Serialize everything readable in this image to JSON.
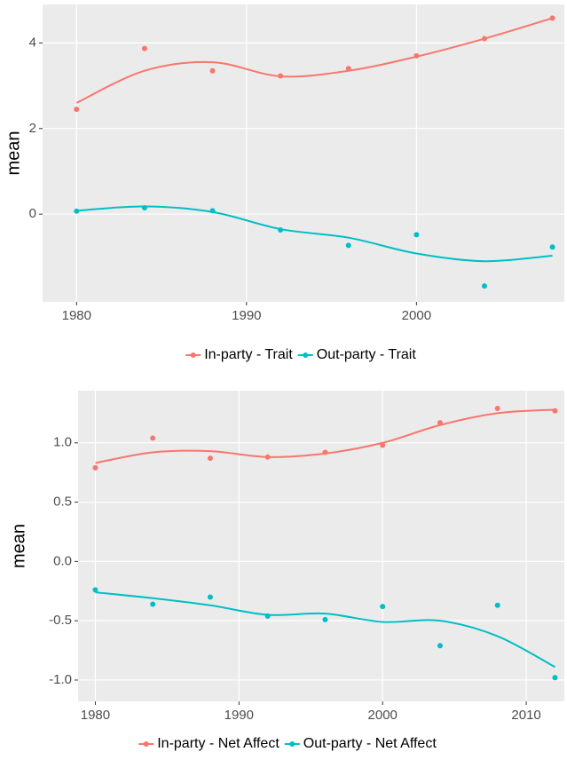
{
  "chart_data": [
    {
      "type": "scatter",
      "y_label": "mean",
      "x": [
        1980,
        1984,
        1988,
        1992,
        1996,
        2000,
        2004,
        2008
      ],
      "xlim": [
        1978,
        2008.7
      ],
      "xticks": [
        1980,
        1990,
        2000
      ],
      "ylim": [
        -2.05,
        4.9
      ],
      "yticks": [
        0,
        2,
        4
      ],
      "grid": true,
      "series": [
        {
          "name": "In-party - Trait",
          "color": "#f8766d",
          "values": [
            2.45,
            3.87,
            3.35,
            3.23,
            3.4,
            3.7,
            4.1,
            4.58
          ],
          "fit": [
            2.6,
            3.35,
            3.55,
            3.22,
            3.35,
            3.68,
            4.1,
            4.58
          ]
        },
        {
          "name": "Out-party - Trait",
          "color": "#00bfc4",
          "values": [
            0.07,
            0.15,
            0.08,
            -0.37,
            -0.73,
            -0.48,
            -1.68,
            -0.77
          ],
          "fit": [
            0.08,
            0.18,
            0.05,
            -0.35,
            -0.55,
            -0.92,
            -1.1,
            -0.97
          ]
        }
      ]
    },
    {
      "type": "scatter",
      "y_label": "mean",
      "x": [
        1980,
        1984,
        1988,
        1992,
        1996,
        2000,
        2004,
        2008,
        2012
      ],
      "xlim": [
        1978.8,
        2012.65
      ],
      "xticks": [
        1980,
        1990,
        2000,
        2010
      ],
      "ylim": [
        -1.18,
        1.44
      ],
      "yticks": [
        {
          "value": -1,
          "label": "-1.0"
        },
        {
          "value": -0.5,
          "label": "-0.5"
        },
        {
          "value": 0,
          "label": "0.0"
        },
        {
          "value": 0.5,
          "label": "0.5"
        },
        {
          "value": 1,
          "label": "1.0"
        }
      ],
      "grid": true,
      "series": [
        {
          "name": "In-party - Net Affect",
          "color": "#f8766d",
          "values": [
            0.79,
            1.04,
            0.87,
            0.88,
            0.92,
            0.98,
            1.17,
            1.29,
            1.27
          ],
          "fit": [
            0.83,
            0.92,
            0.93,
            0.88,
            0.91,
            1.0,
            1.15,
            1.25,
            1.28
          ]
        },
        {
          "name": "Out-party - Net Affect",
          "color": "#00bfc4",
          "values": [
            -0.24,
            -0.36,
            -0.3,
            -0.46,
            -0.49,
            -0.38,
            -0.71,
            -0.37,
            -0.98
          ],
          "fit": [
            -0.26,
            -0.31,
            -0.37,
            -0.45,
            -0.44,
            -0.51,
            -0.5,
            -0.63,
            -0.89
          ]
        }
      ]
    }
  ]
}
